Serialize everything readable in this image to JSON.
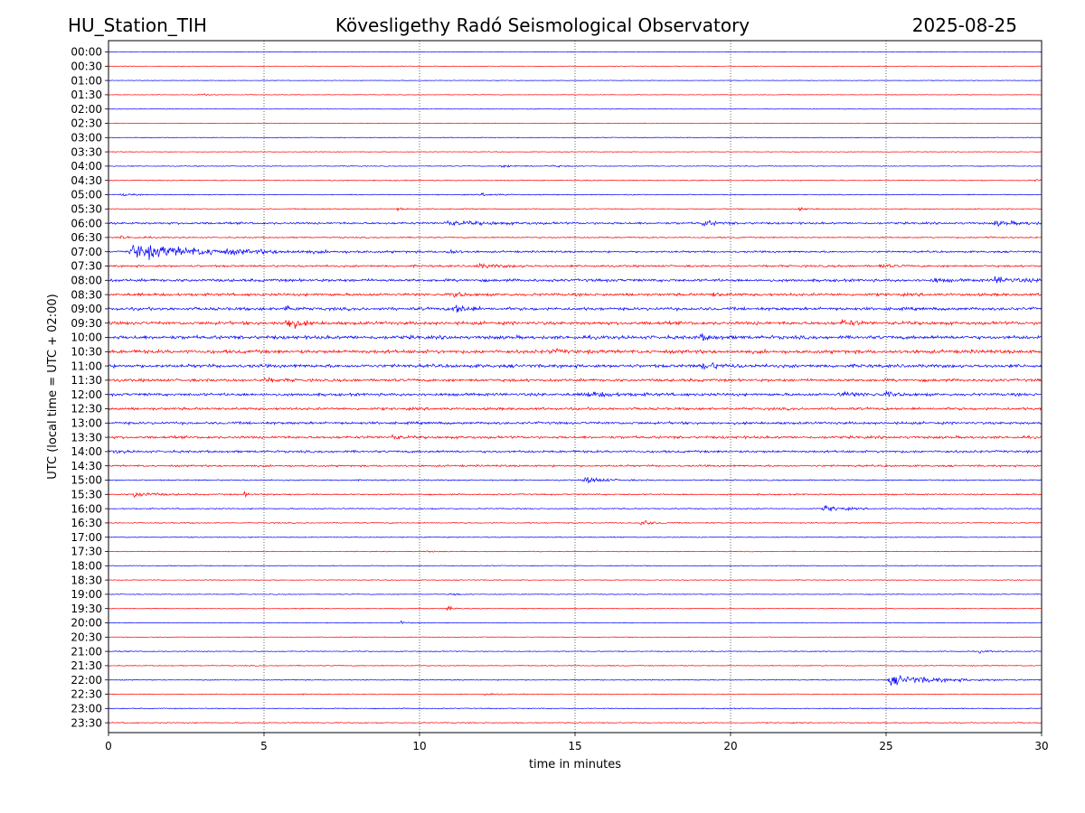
{
  "header": {
    "station": "HU_Station_TIH",
    "title": "Kövesligethy Radó Seismological Observatory",
    "date": "2025-08-25"
  },
  "chart_data": {
    "type": "line",
    "title": "Kövesligethy Radó Seismological Observatory",
    "xlabel": "time in minutes",
    "ylabel": "UTC (local time = UTC + 02:00)",
    "xlim": [
      0,
      30
    ],
    "x_ticks": [
      0,
      5,
      10,
      15,
      20,
      25,
      30
    ],
    "grid": "vertical dotted lines at 5, 10, 15, 20, 25",
    "row_colors": [
      "#0000ff",
      "#ff0000"
    ],
    "rows": [
      {
        "label": "00:00",
        "level": 0.25,
        "events": []
      },
      {
        "label": "00:30",
        "level": 0.25,
        "events": []
      },
      {
        "label": "01:00",
        "level": 0.25,
        "events": []
      },
      {
        "label": "01:30",
        "level": 0.25,
        "events": [
          {
            "t": 2.9,
            "amp": 0.8,
            "dur": 0.4
          }
        ]
      },
      {
        "label": "02:00",
        "level": 0.25,
        "events": []
      },
      {
        "label": "02:30",
        "level": 0.25,
        "events": []
      },
      {
        "label": "03:00",
        "level": 0.28,
        "events": []
      },
      {
        "label": "03:30",
        "level": 0.28,
        "events": []
      },
      {
        "label": "04:00",
        "level": 0.35,
        "events": [
          {
            "t": 12.6,
            "amp": 1.0,
            "dur": 0.5
          },
          {
            "t": 14.2,
            "amp": 0.9,
            "dur": 0.3
          }
        ]
      },
      {
        "label": "04:30",
        "level": 0.4,
        "events": [
          {
            "t": 29.8,
            "amp": 1.0,
            "dur": 0.2
          }
        ]
      },
      {
        "label": "05:00",
        "level": 0.4,
        "events": [
          {
            "t": 0.4,
            "amp": 1.3,
            "dur": 0.3
          },
          {
            "t": 12.0,
            "amp": 1.0,
            "dur": 0.6
          }
        ]
      },
      {
        "label": "05:30",
        "level": 0.45,
        "events": [
          {
            "t": 9.3,
            "amp": 1.4,
            "dur": 0.2
          },
          {
            "t": 22.2,
            "amp": 1.0,
            "dur": 0.3
          }
        ]
      },
      {
        "label": "06:00",
        "level": 0.9,
        "events": [
          {
            "t": 10.8,
            "amp": 1.6,
            "dur": 1.5
          },
          {
            "t": 19.1,
            "amp": 2.6,
            "dur": 0.4
          },
          {
            "t": 28.5,
            "amp": 1.8,
            "dur": 1.0
          }
        ]
      },
      {
        "label": "06:30",
        "level": 0.55,
        "events": [
          {
            "t": 0.4,
            "amp": 1.2,
            "dur": 0.5
          },
          {
            "t": 28.2,
            "amp": 1.0,
            "dur": 0.2
          }
        ]
      },
      {
        "label": "07:00",
        "level": 0.8,
        "events": [
          {
            "t": 0.7,
            "amp": 6.5,
            "dur": 2.5
          },
          {
            "t": 10.9,
            "amp": 3.2,
            "dur": 0.2
          }
        ]
      },
      {
        "label": "07:30",
        "level": 0.9,
        "events": [
          {
            "t": 11.8,
            "amp": 1.6,
            "dur": 0.8
          },
          {
            "t": 24.8,
            "amp": 1.6,
            "dur": 0.3
          }
        ]
      },
      {
        "label": "08:00",
        "level": 1.2,
        "events": [
          {
            "t": 26.5,
            "amp": 2.0,
            "dur": 0.3
          },
          {
            "t": 28.5,
            "amp": 2.8,
            "dur": 0.6
          }
        ]
      },
      {
        "label": "08:30",
        "level": 1.2,
        "events": [
          {
            "t": 11.1,
            "amp": 3.0,
            "dur": 0.2
          },
          {
            "t": 19.4,
            "amp": 2.0,
            "dur": 0.3
          }
        ]
      },
      {
        "label": "09:00",
        "level": 1.3,
        "events": [
          {
            "t": 5.7,
            "amp": 3.5,
            "dur": 0.2
          },
          {
            "t": 11.1,
            "amp": 6.0,
            "dur": 0.3
          }
        ]
      },
      {
        "label": "09:30",
        "level": 1.4,
        "events": [
          {
            "t": 5.7,
            "amp": 7.0,
            "dur": 0.3
          },
          {
            "t": 23.6,
            "amp": 3.2,
            "dur": 0.3
          }
        ]
      },
      {
        "label": "10:00",
        "level": 1.5,
        "events": [
          {
            "t": 19.0,
            "amp": 2.4,
            "dur": 0.4
          }
        ]
      },
      {
        "label": "10:30",
        "level": 1.5,
        "events": [
          {
            "t": 14.2,
            "amp": 1.8,
            "dur": 0.3
          }
        ]
      },
      {
        "label": "11:00",
        "level": 1.4,
        "events": [
          {
            "t": 19.1,
            "amp": 3.6,
            "dur": 0.5
          }
        ]
      },
      {
        "label": "11:30",
        "level": 1.2,
        "events": [
          {
            "t": 5.0,
            "amp": 1.6,
            "dur": 0.4
          }
        ]
      },
      {
        "label": "12:00",
        "level": 1.2,
        "events": [
          {
            "t": 15.3,
            "amp": 2.0,
            "dur": 1.0
          },
          {
            "t": 23.5,
            "amp": 1.6,
            "dur": 0.8
          },
          {
            "t": 25.0,
            "amp": 1.8,
            "dur": 0.3
          }
        ]
      },
      {
        "label": "12:30",
        "level": 1.1,
        "events": []
      },
      {
        "label": "13:00",
        "level": 1.1,
        "events": []
      },
      {
        "label": "13:30",
        "level": 1.1,
        "events": [
          {
            "t": 9.1,
            "amp": 1.6,
            "dur": 0.3
          }
        ]
      },
      {
        "label": "14:00",
        "level": 1.0,
        "events": [
          {
            "t": 0.2,
            "amp": 1.6,
            "dur": 0.2
          }
        ]
      },
      {
        "label": "14:30",
        "level": 0.8,
        "events": []
      },
      {
        "label": "15:00",
        "level": 0.55,
        "events": [
          {
            "t": 15.3,
            "amp": 3.4,
            "dur": 0.5
          }
        ]
      },
      {
        "label": "15:30",
        "level": 0.6,
        "events": [
          {
            "t": 0.8,
            "amp": 2.6,
            "dur": 0.6
          },
          {
            "t": 4.3,
            "amp": 2.4,
            "dur": 0.2
          }
        ]
      },
      {
        "label": "16:00",
        "level": 0.5,
        "events": [
          {
            "t": 23.0,
            "amp": 3.2,
            "dur": 0.5
          }
        ]
      },
      {
        "label": "16:30",
        "level": 0.45,
        "events": [
          {
            "t": 17.1,
            "amp": 3.2,
            "dur": 0.3
          }
        ]
      },
      {
        "label": "17:00",
        "level": 0.4,
        "events": []
      },
      {
        "label": "17:30",
        "level": 0.35,
        "events": [
          {
            "t": 10.2,
            "amp": 0.9,
            "dur": 0.2
          }
        ]
      },
      {
        "label": "18:00",
        "level": 0.35,
        "events": []
      },
      {
        "label": "18:30",
        "level": 0.35,
        "events": []
      },
      {
        "label": "19:00",
        "level": 0.35,
        "events": [
          {
            "t": 11.0,
            "amp": 1.2,
            "dur": 0.2
          }
        ]
      },
      {
        "label": "19:30",
        "level": 0.35,
        "events": [
          {
            "t": 10.9,
            "amp": 2.4,
            "dur": 0.2
          }
        ]
      },
      {
        "label": "20:00",
        "level": 0.3,
        "events": [
          {
            "t": 9.4,
            "amp": 1.6,
            "dur": 0.2
          }
        ]
      },
      {
        "label": "20:30",
        "level": 0.3,
        "events": []
      },
      {
        "label": "21:00",
        "level": 0.4,
        "events": [
          {
            "t": 28.0,
            "amp": 1.0,
            "dur": 0.4
          }
        ]
      },
      {
        "label": "21:30",
        "level": 0.4,
        "events": []
      },
      {
        "label": "22:00",
        "level": 0.4,
        "events": [
          {
            "t": 25.1,
            "amp": 4.5,
            "dur": 1.5
          }
        ]
      },
      {
        "label": "22:30",
        "level": 0.4,
        "events": [
          {
            "t": 12.1,
            "amp": 0.9,
            "dur": 0.3
          }
        ]
      },
      {
        "label": "23:00",
        "level": 0.4,
        "events": []
      },
      {
        "label": "23:30",
        "level": 0.45,
        "events": []
      }
    ]
  }
}
